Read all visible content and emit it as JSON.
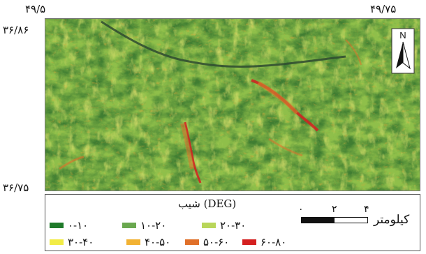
{
  "coordinates": {
    "lon_left": "۴۹/۵",
    "lon_right": "۴۹/۷۵",
    "lat_top": "۳۶/۸۶",
    "lat_bottom": "۳۶/۷۵"
  },
  "north_arrow": {
    "label": "N"
  },
  "legend": {
    "title": "شیب (DEG)",
    "classes": [
      {
        "label": "۰-۱۰",
        "color": "#1f7a2a"
      },
      {
        "label": "۱۰-۲۰",
        "color": "#6aa84f"
      },
      {
        "label": "۲۰-۳۰",
        "color": "#b9d65a"
      },
      {
        "label": "۳۰-۴۰",
        "color": "#f2ec46"
      },
      {
        "label": "۴۰-۵۰",
        "color": "#f2b233"
      },
      {
        "label": "۵۰-۶۰",
        "color": "#e0702a"
      },
      {
        "label": "۶۰-۸۰",
        "color": "#d42020"
      }
    ]
  },
  "scale_bar": {
    "ticks": [
      "۰",
      "۲",
      "۴"
    ],
    "unit": "کیلومتر"
  },
  "colors": {
    "terrain_base": "#8fbf4a",
    "terrain_dark": "#3f7d32",
    "terrain_light": "#d6dd6a",
    "river": "#2e4a30"
  }
}
